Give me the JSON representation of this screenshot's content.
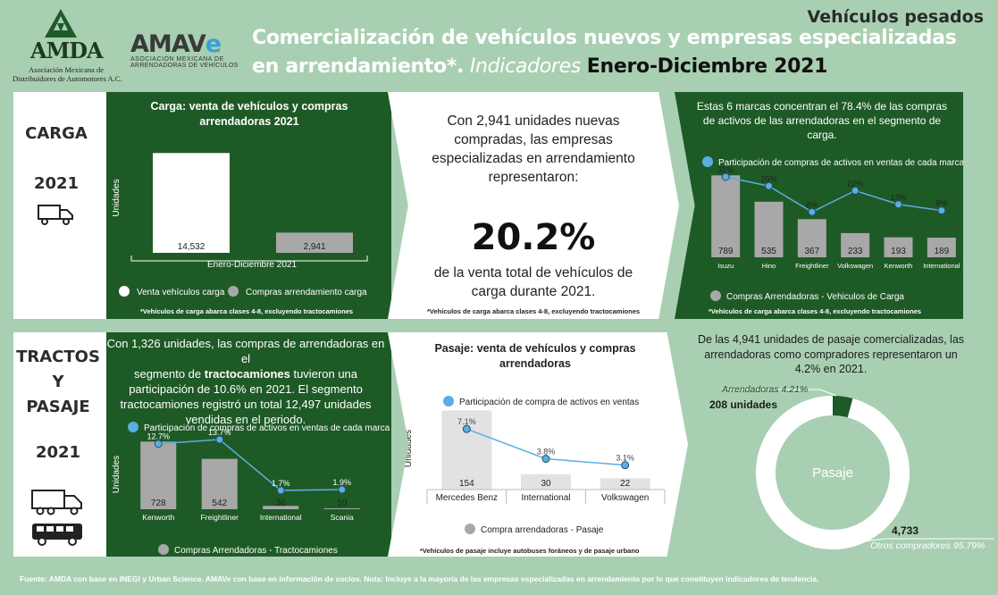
{
  "header": {
    "amda_logo_text": "AMDA",
    "amda_name_line1": "Asociación Mexicana de",
    "amda_name_line2": "Distribuidores de Automotores A.C.",
    "amave_logo_text": "AMAV",
    "amave_logo_e": "e",
    "amave_name_line1": "ASOCIACIÓN MEXICANA DE",
    "amave_name_line2": "ARRENDADORAS DE VEHÍCULOS",
    "title_line1": "Comercialización de vehículos nuevos y empresas especializadas",
    "title_line2_a": "en arrendamiento*.",
    "title_line2_b": "Indicadores",
    "title_line2_c": "Enero-Diciembre 2021",
    "segment": "Vehículos pesados"
  },
  "carga": {
    "side_label": "CARGA",
    "side_year": "2021",
    "truck_icon": "truck-icon",
    "summary_line1": "Con 2,941 unidades nuevas",
    "summary_line2": "compradas, las empresas",
    "summary_line3": "especializadas en arrendamiento",
    "summary_line4": "representaron:",
    "summary_pct": "20.2%",
    "summary_line5": "de la venta total de vehículos de",
    "summary_line6": "carga durante 2021.",
    "summary_note": "*Vehículos de carga abarca clases 4-8, excluyendo tractocamiones",
    "brands_text_line1": "Estas 6 marcas concentran el 78.4% de las compras",
    "brands_text_line2": "de activos de las arrendadoras en el segmento de",
    "brands_text_line3": "carga."
  },
  "tractos": {
    "side_label_1": "TRACTOS",
    "side_label_2": "Y",
    "side_label_3": "PASAJE",
    "side_year": "2021",
    "text_line1": "Con 1,326 unidades, las compras de arrendadoras en el",
    "text_line2_a": "segmento de ",
    "text_line2_b": "tractocamiones",
    "text_line2_c": " tuvieron una",
    "text_line3": "participación de 10.6% en 2021. El segmento",
    "text_line4": "tractocamiones registró un total 12,497 unidades",
    "text_line5": "vendidas en el periodo."
  },
  "pasaje_text": {
    "line1": "De las 4,941 unidades de pasaje comercializadas, las",
    "line2": "arrendadoras como compradores representaron un",
    "line3": "4.2% en 2021."
  },
  "footer": "Fuente: AMDA con base en INEGI y Urban Science. AMAVe con base en información de socios. Nota: Incluye a la mayoría de las empresas especializadas en arrendamiento por lo que constituyen indicadores de tendencia.",
  "colors": {
    "background": "#a9cfb3",
    "dark_green": "#1e5a26",
    "bar_gray": "#a8a8a8",
    "line_blue": "#5aaee0",
    "donut_green": "#1e5a26"
  },
  "chart_data": [
    {
      "id": "carga_total",
      "type": "bar",
      "title": "Carga: venta de vehículos  y compras arrendadoras 2021",
      "xlabel": "Enero-Diciembre 2021",
      "ylabel": "Unidades",
      "series": [
        {
          "name": "Venta vehículos carga",
          "values": [
            14532
          ],
          "color": "#ffffff"
        },
        {
          "name": "Compras arrendamiento carga",
          "values": [
            2941
          ],
          "color": "#a8a8a8"
        }
      ],
      "value_labels": [
        "14,532",
        "2,941"
      ],
      "ylim": [
        0,
        16000
      ],
      "legend": "bottom",
      "note": "*Vehículos de carga abarca clases 4-8, excluyendo tractocamiones"
    },
    {
      "id": "carga_brands",
      "type": "bar",
      "ylabel": "Unidades",
      "categories": [
        "Isuzu",
        "Hino",
        "Freightliner",
        "Volkswagen",
        "Kenworth",
        "International"
      ],
      "bars": {
        "name": "Compras Arrendadoras - Vehiculos de Carga",
        "values": [
          789,
          535,
          367,
          233,
          193,
          189
        ]
      },
      "line": {
        "name": "Participación de compras de activos en ventas de cada marca",
        "values": [
          31,
          25,
          8,
          22,
          13,
          9
        ],
        "labels": [
          "31%",
          "25%",
          "8%",
          "22%",
          "13%",
          "9%"
        ]
      },
      "ylim": [
        0,
        800
      ],
      "legend": "top / bottom",
      "note": "*Vehículos de carga abarca clases 4-8, excluyendo tractocamiones"
    },
    {
      "id": "tracto_brands",
      "type": "bar",
      "ylabel": "Unidades",
      "categories": [
        "Kenworth",
        "Freightliner",
        "International",
        "Scania"
      ],
      "bars": {
        "name": "Compras Arrendadoras - Tractocamiones",
        "values": [
          728,
          542,
          36,
          10
        ]
      },
      "line": {
        "name": "Participación de compras de activos en ventas de cada marca",
        "values": [
          12.7,
          13.7,
          1.7,
          1.9
        ],
        "labels": [
          "12.7%",
          "13.7%",
          "1.7%",
          "1.9%"
        ]
      },
      "ylim": [
        0,
        750
      ],
      "legend": "top / bottom"
    },
    {
      "id": "pasaje_brands",
      "type": "bar",
      "title": "Pasaje: venta de vehículos y compras arrendadoras",
      "ylabel": "Unidades",
      "categories": [
        "Mercedes Benz",
        "International",
        "Volkswagen"
      ],
      "bars": {
        "name": "Compra arrendadoras - Pasaje",
        "values": [
          154,
          30,
          22
        ]
      },
      "line": {
        "name": "Participación de compra de activos en ventas",
        "values": [
          7.1,
          3.8,
          3.1
        ],
        "labels": [
          "7.1%",
          "3.8%",
          "3.1%"
        ]
      },
      "ylim": [
        0,
        160
      ],
      "legend": "top / bottom",
      "note": "*Vehículos de pasaje incluye autobuses foráneos y de pasaje urbano"
    },
    {
      "id": "pasaje_donut",
      "type": "pie",
      "center_label": "Pasaje",
      "slices": [
        {
          "name": "Arrendadoras",
          "pct": 4.21,
          "pct_label": "4.21%",
          "units": 208,
          "units_label": "208 unidades",
          "color": "#1e5a26"
        },
        {
          "name": "Otros compradores",
          "pct": 95.79,
          "pct_label": "95.79%",
          "units": 4733,
          "units_label": "4,733",
          "color": "#ffffff"
        }
      ]
    }
  ]
}
